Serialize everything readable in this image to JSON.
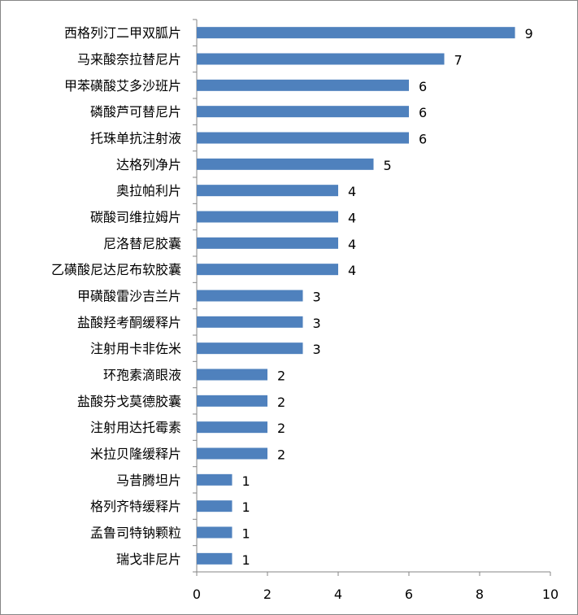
{
  "chart_data": {
    "type": "bar",
    "orientation": "horizontal",
    "categories": [
      "西格列汀二甲双胍片",
      "马来酸奈拉替尼片",
      "甲苯磺酸艾多沙班片",
      "磷酸芦可替尼片",
      "托珠单抗注射液",
      "达格列净片",
      "奥拉帕利片",
      "碳酸司维拉姆片",
      "尼洛替尼胶囊",
      "乙磺酸尼达尼布软胶囊",
      "甲磺酸雷沙吉兰片",
      "盐酸羟考酮缓释片",
      "注射用卡非佐米",
      "环孢素滴眼液",
      "盐酸芬戈莫德胶囊",
      "注射用达托霉素",
      "米拉贝隆缓释片",
      "马昔腾坦片",
      "格列齐特缓释片",
      "孟鲁司特钠颗粒",
      "瑞戈非尼片"
    ],
    "values": [
      9,
      7,
      6,
      6,
      6,
      5,
      4,
      4,
      4,
      4,
      3,
      3,
      3,
      2,
      2,
      2,
      2,
      1,
      1,
      1,
      1
    ],
    "xlim": [
      0,
      10
    ],
    "xticks": [
      "0",
      "2",
      "4",
      "6",
      "8",
      "10"
    ],
    "grid": false,
    "data_labels": true,
    "bar_color": "#4f81bd",
    "title": "",
    "xlabel": "",
    "ylabel": ""
  }
}
